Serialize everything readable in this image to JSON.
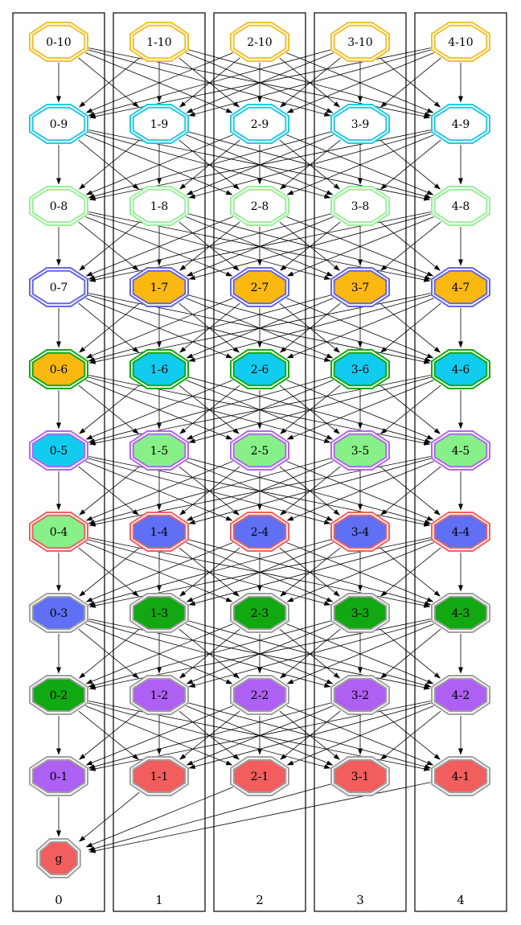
{
  "columns": [
    {
      "label": "0",
      "nodes": [
        {
          "label": "0-10",
          "ring": "#f2c02d",
          "fill": "#ffffff"
        },
        {
          "label": "0-9",
          "ring": "#22c9e6",
          "fill": "#ffffff"
        },
        {
          "label": "0-8",
          "ring": "#99ee99",
          "fill": "#ffffff"
        },
        {
          "label": "0-7",
          "ring": "#6565e6",
          "fill": "#ffffff"
        },
        {
          "label": "0-6",
          "ring": "#11a811",
          "fill": "#fab811"
        },
        {
          "label": "0-5",
          "ring": "#b066ee",
          "fill": "#11ccee"
        },
        {
          "label": "0-4",
          "ring": "#f06060",
          "fill": "#88f088"
        },
        {
          "label": "0-3",
          "ring": "#a0a0a0",
          "fill": "#6070f4"
        },
        {
          "label": "0-2",
          "ring": "#a0a0a0",
          "fill": "#11a811"
        },
        {
          "label": "0-1",
          "ring": "#a0a0a0",
          "fill": "#ae60f2"
        }
      ]
    },
    {
      "label": "1",
      "nodes": [
        {
          "label": "1-10",
          "ring": "#f2c02d",
          "fill": "#ffffff"
        },
        {
          "label": "1-9",
          "ring": "#22c9e6",
          "fill": "#ffffff"
        },
        {
          "label": "1-8",
          "ring": "#99ee99",
          "fill": "#ffffff"
        },
        {
          "label": "1-7",
          "ring": "#6565e6",
          "fill": "#fab811"
        },
        {
          "label": "1-6",
          "ring": "#11a811",
          "fill": "#11ccee"
        },
        {
          "label": "1-5",
          "ring": "#b066ee",
          "fill": "#88f088"
        },
        {
          "label": "1-4",
          "ring": "#f06060",
          "fill": "#6070f4"
        },
        {
          "label": "1-3",
          "ring": "#a0a0a0",
          "fill": "#11a811"
        },
        {
          "label": "1-2",
          "ring": "#a0a0a0",
          "fill": "#ae60f2"
        },
        {
          "label": "1-1",
          "ring": "#a0a0a0",
          "fill": "#f25d5d"
        }
      ]
    },
    {
      "label": "2",
      "nodes": [
        {
          "label": "2-10",
          "ring": "#f2c02d",
          "fill": "#ffffff"
        },
        {
          "label": "2-9",
          "ring": "#22c9e6",
          "fill": "#ffffff"
        },
        {
          "label": "2-8",
          "ring": "#99ee99",
          "fill": "#ffffff"
        },
        {
          "label": "2-7",
          "ring": "#6565e6",
          "fill": "#fab811"
        },
        {
          "label": "2-6",
          "ring": "#11a811",
          "fill": "#11ccee"
        },
        {
          "label": "2-5",
          "ring": "#b066ee",
          "fill": "#88f088"
        },
        {
          "label": "2-4",
          "ring": "#f06060",
          "fill": "#6070f4"
        },
        {
          "label": "2-3",
          "ring": "#a0a0a0",
          "fill": "#11a811"
        },
        {
          "label": "2-2",
          "ring": "#a0a0a0",
          "fill": "#ae60f2"
        },
        {
          "label": "2-1",
          "ring": "#a0a0a0",
          "fill": "#f25d5d"
        }
      ]
    },
    {
      "label": "3",
      "nodes": [
        {
          "label": "3-10",
          "ring": "#f2c02d",
          "fill": "#ffffff"
        },
        {
          "label": "3-9",
          "ring": "#22c9e6",
          "fill": "#ffffff"
        },
        {
          "label": "3-8",
          "ring": "#99ee99",
          "fill": "#ffffff"
        },
        {
          "label": "3-7",
          "ring": "#6565e6",
          "fill": "#fab811"
        },
        {
          "label": "3-6",
          "ring": "#11a811",
          "fill": "#11ccee"
        },
        {
          "label": "3-5",
          "ring": "#b066ee",
          "fill": "#88f088"
        },
        {
          "label": "3-4",
          "ring": "#f06060",
          "fill": "#6070f4"
        },
        {
          "label": "3-3",
          "ring": "#a0a0a0",
          "fill": "#11a811"
        },
        {
          "label": "3-2",
          "ring": "#a0a0a0",
          "fill": "#ae60f2"
        },
        {
          "label": "3-1",
          "ring": "#a0a0a0",
          "fill": "#f25d5d"
        }
      ]
    },
    {
      "label": "4",
      "nodes": [
        {
          "label": "4-10",
          "ring": "#f2c02d",
          "fill": "#ffffff"
        },
        {
          "label": "4-9",
          "ring": "#22c9e6",
          "fill": "#ffffff"
        },
        {
          "label": "4-8",
          "ring": "#99ee99",
          "fill": "#ffffff"
        },
        {
          "label": "4-7",
          "ring": "#6565e6",
          "fill": "#fab811"
        },
        {
          "label": "4-6",
          "ring": "#11a811",
          "fill": "#11ccee"
        },
        {
          "label": "4-5",
          "ring": "#b066ee",
          "fill": "#88f088"
        },
        {
          "label": "4-4",
          "ring": "#f06060",
          "fill": "#6070f4"
        },
        {
          "label": "4-3",
          "ring": "#a0a0a0",
          "fill": "#11a811"
        },
        {
          "label": "4-2",
          "ring": "#a0a0a0",
          "fill": "#ae60f2"
        },
        {
          "label": "4-1",
          "ring": "#a0a0a0",
          "fill": "#f25d5d"
        }
      ]
    }
  ],
  "goal": {
    "label": "g",
    "ring": "#a0a0a0",
    "fill": "#f25d5d"
  },
  "edges": "each node at level n links to the node in its own column at level n-1 and to nodes in the other columns at level n-1; every level-1 node links to g",
  "colors": {
    "edge": "#000000",
    "cluster_border": "#000000",
    "text": "#000000"
  }
}
